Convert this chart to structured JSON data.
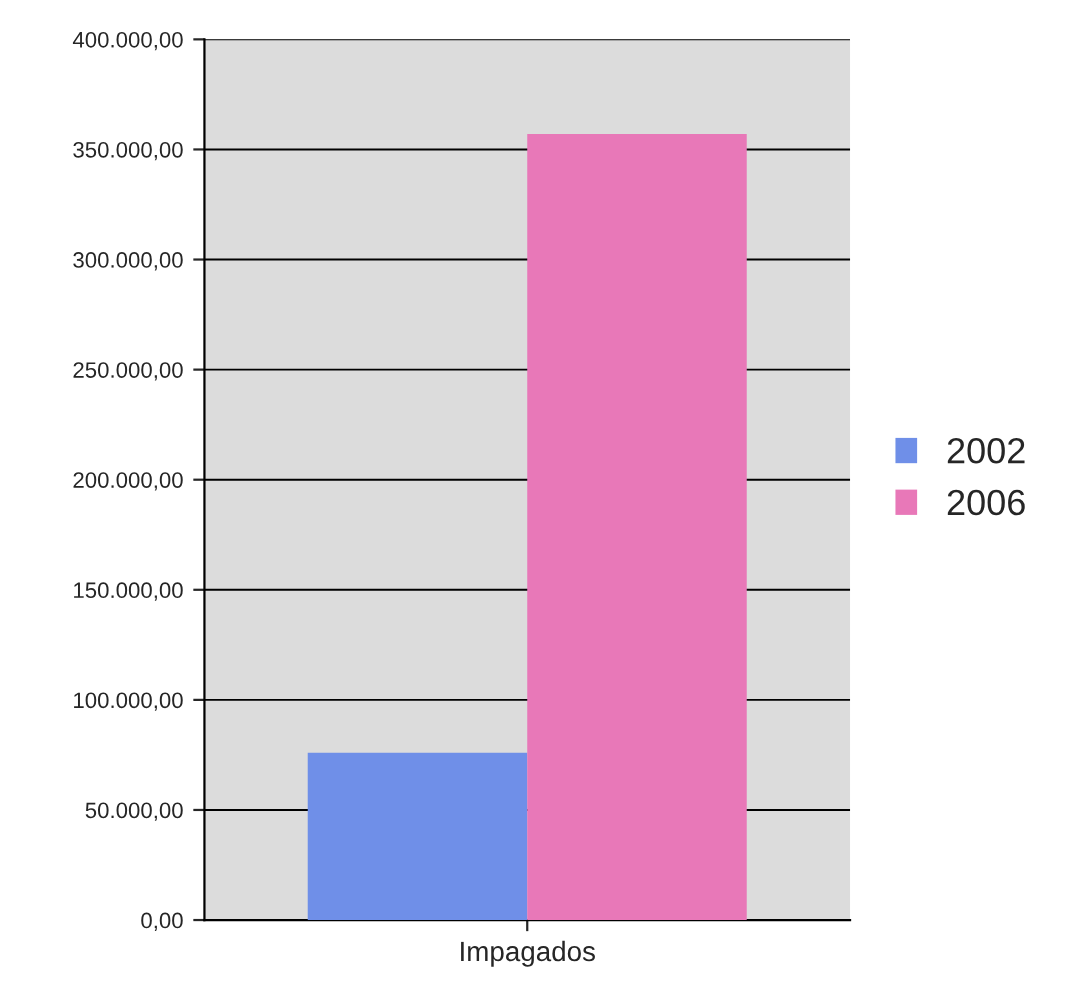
{
  "chart_data": {
    "type": "bar",
    "categories": [
      "Impagados"
    ],
    "series": [
      {
        "name": "2002",
        "color": "#6f8fe8",
        "values": [
          76000
        ]
      },
      {
        "name": "2006",
        "color": "#e878b8",
        "values": [
          357000
        ]
      }
    ],
    "ylim": [
      0,
      400000
    ],
    "yticks": [
      {
        "value": 0,
        "label": "0,00"
      },
      {
        "value": 50000,
        "label": "50.000,00"
      },
      {
        "value": 100000,
        "label": "100.000,00"
      },
      {
        "value": 150000,
        "label": "150.000,00"
      },
      {
        "value": 200000,
        "label": "200.000,00"
      },
      {
        "value": 250000,
        "label": "250.000,00"
      },
      {
        "value": 300000,
        "label": "300.000,00"
      },
      {
        "value": 350000,
        "label": "350.000,00"
      },
      {
        "value": 400000,
        "label": "400.000,00"
      }
    ],
    "grid": "y",
    "legend": "right"
  }
}
